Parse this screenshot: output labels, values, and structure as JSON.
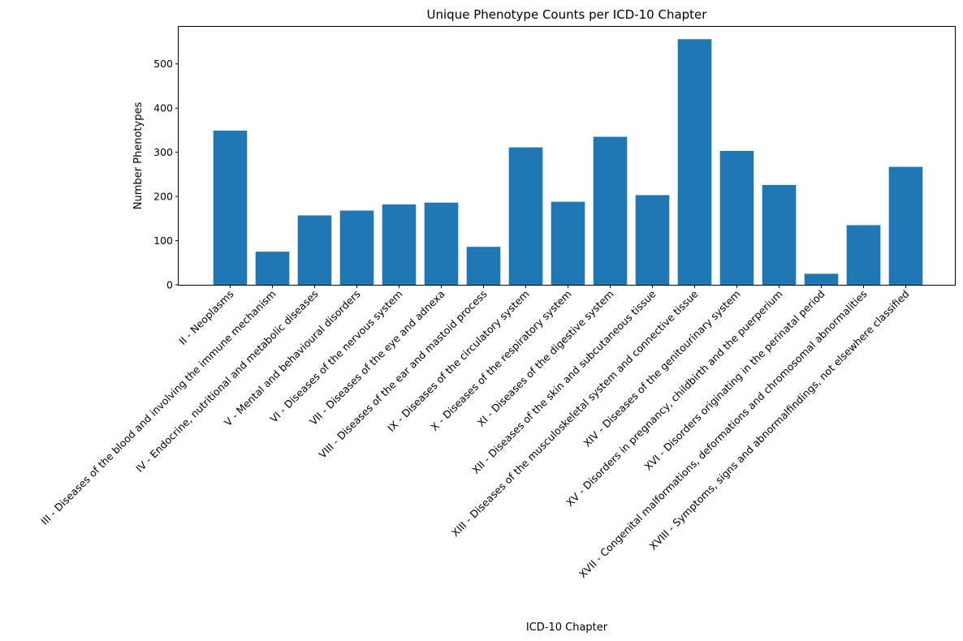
{
  "chart_data": {
    "type": "bar",
    "title": "Unique Phenotype Counts per ICD-10 Chapter",
    "xlabel": "ICD-10 Chapter",
    "ylabel": "Number Phenotypes",
    "ylim": [
      0,
      584
    ],
    "yticks": [
      0,
      100,
      200,
      300,
      400,
      500
    ],
    "grid": false,
    "bar_color": "#1f77b4",
    "categories": [
      "II - Neoplasms",
      "III - Diseases of the blood and involving the immune mechanism",
      "IV - Endocrine, nutritional and metabolic diseases",
      "V - Mental and behavioural disorders",
      "VI - Diseases of the nervous system",
      "VII - Diseases of the eye and adnexa",
      "VIII - Diseases of the ear and mastoid process",
      "IX - Diseases of the circulatory system",
      "X - Diseases of the respiratory system",
      "XI - Diseases of the digestive system",
      "XII - Diseases of the skin and subcutaneous tissue",
      "XIII - Diseases of the musculoskeletal system and connective tissue",
      "XIV - Diseases of the genitourinary system",
      "XV - Disorders in pregnancy, childbirth and the puerperium",
      "XVI - Disorders originating in the perinatal period",
      "XVII - Congenital malformations, deformations and chromosomal abnormalities",
      "XVIII - Symptoms, signs and abnormalfindings, not elsewhere classified"
    ],
    "values": [
      349,
      75,
      157,
      168,
      182,
      186,
      86,
      311,
      188,
      335,
      203,
      556,
      303,
      226,
      25,
      135,
      267
    ]
  }
}
